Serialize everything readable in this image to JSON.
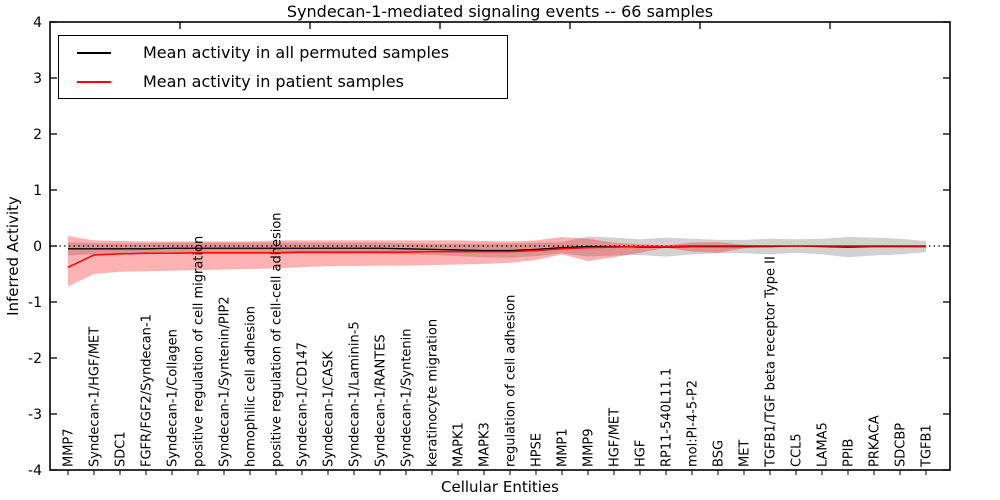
{
  "title": "Syndecan-1-mediated signaling events -- 66 samples",
  "legend": {
    "items": [
      {
        "label": "Mean activity in all permuted samples",
        "color": "#000000"
      },
      {
        "label": "Mean activity in patient samples",
        "color": "#ff0000"
      }
    ]
  },
  "chart_data": {
    "type": "line",
    "title": "Syndecan-1-mediated signaling events -- 66 samples",
    "xlabel": "Cellular Entities",
    "ylabel": "Inferred Activity",
    "ylim": [
      -4,
      4
    ],
    "y_ticks": [
      -4,
      -3,
      -2,
      -1,
      0,
      1,
      2,
      3,
      4
    ],
    "grid": false,
    "legend_position": "upper left",
    "zero_line": {
      "style": "dotted",
      "color": "#000000",
      "y": 0
    },
    "categories": [
      "MMP7",
      "Syndecan-1/HGF/MET",
      "SDC1",
      "FGFR/FGF2/Syndecan-1",
      "Syndecan-1/Collagen",
      "positive regulation of cell migration",
      "Syndecan-1/Syntenin/PIP2",
      "homophilic cell adhesion",
      "positive regulation of cell-cell adhesion",
      "Syndecan-1/CD147",
      "Syndecan-1/CASK",
      "Syndecan-1/Laminin-5",
      "Syndecan-1/RANTES",
      "Syndecan-1/Syntenin",
      "keratinocyte migration",
      "MAPK1",
      "MAPK3",
      "regulation of cell adhesion",
      "HPSE",
      "MMP1",
      "MMP9",
      "HGF/MET",
      "HGF",
      "RP11-540L11.1",
      "mol:PI-4-5-P2",
      "BSG",
      "MET",
      "TGFB1/TGF beta receptor Type II",
      "CCL5",
      "LAMA5",
      "PPIB",
      "PRKACA",
      "SDCBP",
      "TGFB1"
    ],
    "series": [
      {
        "name": "Mean activity in all permuted samples",
        "color": "#000000",
        "values": [
          -0.05,
          -0.05,
          -0.05,
          -0.05,
          -0.04,
          -0.04,
          -0.04,
          -0.04,
          -0.04,
          -0.04,
          -0.04,
          -0.04,
          -0.04,
          -0.05,
          -0.06,
          -0.07,
          -0.08,
          -0.08,
          -0.06,
          -0.03,
          -0.01,
          -0.01,
          -0.02,
          -0.02,
          -0.01,
          -0.01,
          -0.01,
          -0.01,
          0.0,
          -0.01,
          -0.02,
          -0.01,
          -0.01,
          -0.01
        ]
      },
      {
        "name": "Mean activity in patient samples",
        "color": "#ff0000",
        "values": [
          -0.38,
          -0.16,
          -0.14,
          -0.13,
          -0.13,
          -0.12,
          -0.12,
          -0.12,
          -0.12,
          -0.11,
          -0.11,
          -0.11,
          -0.11,
          -0.11,
          -0.1,
          -0.1,
          -0.1,
          -0.1,
          -0.08,
          -0.05,
          -0.03,
          -0.02,
          -0.01,
          -0.01,
          0.0,
          0.0,
          0.0,
          0.0,
          0.0,
          0.0,
          0.0,
          0.0,
          0.0,
          0.0
        ]
      }
    ],
    "bands": [
      {
        "name": "permuted-samples-std-band",
        "color": "#999999",
        "opacity": 0.45,
        "upper": [
          0.07,
          0.05,
          0.05,
          0.05,
          0.06,
          0.06,
          0.06,
          0.06,
          0.06,
          0.06,
          0.06,
          0.06,
          0.06,
          0.05,
          0.04,
          0.04,
          0.04,
          0.05,
          0.06,
          0.07,
          0.17,
          0.15,
          0.12,
          0.15,
          0.13,
          0.11,
          0.11,
          0.13,
          0.12,
          0.13,
          0.16,
          0.15,
          0.13,
          0.09
        ],
        "lower": [
          -0.17,
          -0.15,
          -0.15,
          -0.15,
          -0.14,
          -0.14,
          -0.14,
          -0.14,
          -0.14,
          -0.14,
          -0.14,
          -0.14,
          -0.14,
          -0.15,
          -0.16,
          -0.18,
          -0.2,
          -0.21,
          -0.18,
          -0.13,
          -0.19,
          -0.17,
          -0.16,
          -0.19,
          -0.15,
          -0.13,
          -0.13,
          -0.15,
          -0.12,
          -0.15,
          -0.2,
          -0.17,
          -0.15,
          -0.11
        ]
      },
      {
        "name": "patient-samples-std-band",
        "color": "#ff0000",
        "opacity": 0.3,
        "upper": [
          0.18,
          0.1,
          0.09,
          0.08,
          0.08,
          0.08,
          0.08,
          0.08,
          0.1,
          0.1,
          0.1,
          0.1,
          0.1,
          0.1,
          0.1,
          0.1,
          0.09,
          0.08,
          0.1,
          0.16,
          0.13,
          0.06,
          0.03,
          0.01,
          0.06,
          0.07,
          0.02,
          0.01,
          0.01,
          0.01,
          0.01,
          0.01,
          0.01,
          0.01
        ],
        "lower": [
          -0.72,
          -0.5,
          -0.46,
          -0.45,
          -0.44,
          -0.43,
          -0.42,
          -0.41,
          -0.4,
          -0.38,
          -0.36,
          -0.36,
          -0.35,
          -0.35,
          -0.34,
          -0.33,
          -0.32,
          -0.3,
          -0.25,
          -0.15,
          -0.27,
          -0.2,
          -0.12,
          -0.03,
          -0.1,
          -0.12,
          -0.04,
          -0.01,
          -0.01,
          -0.01,
          -0.01,
          -0.01,
          -0.01,
          -0.01
        ]
      }
    ]
  }
}
